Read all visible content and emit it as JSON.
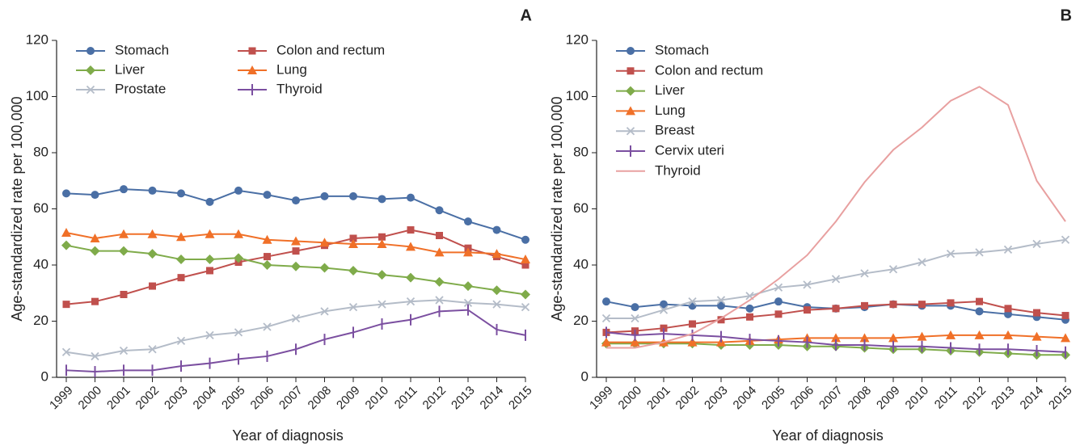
{
  "chart_data": [
    {
      "type": "line",
      "panel": "A",
      "y_label": "Age-standardized rate per 100,000",
      "x_label": "Year of diagnosis",
      "categories": [
        "1999",
        "2000",
        "2001",
        "2002",
        "2003",
        "2004",
        "2005",
        "2006",
        "2007",
        "2008",
        "2009",
        "2010",
        "2011",
        "2012",
        "2013",
        "2014",
        "2015"
      ],
      "ylim": [
        0,
        120
      ],
      "yticks": [
        0,
        20,
        40,
        60,
        80,
        100,
        120
      ],
      "legend_columns": 2,
      "series": [
        {
          "name": "Stomach",
          "color": "#4a6fa5",
          "marker": "circle",
          "values": [
            65.5,
            65,
            67,
            66.5,
            65.5,
            62.5,
            66.5,
            65,
            63,
            64.5,
            64.5,
            63.5,
            64,
            59.5,
            55.5,
            52.5,
            49
          ]
        },
        {
          "name": "Colon and rectum",
          "color": "#c0504d",
          "marker": "square",
          "values": [
            26,
            27,
            29.5,
            32.5,
            35.5,
            38,
            41,
            43,
            45,
            47,
            49.5,
            50,
            52.5,
            50.5,
            46,
            43,
            40
          ]
        },
        {
          "name": "Liver",
          "color": "#7fab4a",
          "marker": "diamond",
          "values": [
            47,
            45,
            45,
            44,
            42,
            42,
            42.5,
            40,
            39.5,
            39,
            38,
            36.5,
            35.5,
            34,
            32.5,
            31,
            29.5
          ]
        },
        {
          "name": "Lung",
          "color": "#f07028",
          "marker": "triangle",
          "values": [
            51.5,
            49.5,
            51,
            51,
            50,
            51,
            51,
            49,
            48.5,
            48,
            47.5,
            47.5,
            46.5,
            44.5,
            44.5,
            44,
            42
          ]
        },
        {
          "name": "Prostate",
          "color": "#b4bcc8",
          "marker": "x",
          "values": [
            9,
            7.5,
            9.5,
            10,
            13,
            15,
            16,
            18,
            21,
            23.5,
            25,
            26,
            27,
            27.5,
            26.5,
            26,
            25
          ]
        },
        {
          "name": "Thyroid",
          "color": "#7b4fa0",
          "marker": "plus",
          "values": [
            2.5,
            2,
            2.5,
            2.5,
            4,
            5,
            6.5,
            7.5,
            10,
            13.5,
            16,
            19,
            20.5,
            23.5,
            24,
            17,
            15
          ]
        }
      ]
    },
    {
      "type": "line",
      "panel": "B",
      "y_label": "Age-standardized rate per 100,000",
      "x_label": "Year of diagnosis",
      "categories": [
        "1999",
        "2000",
        "2001",
        "2002",
        "2003",
        "2004",
        "2005",
        "2006",
        "2007",
        "2008",
        "2009",
        "2010",
        "2011",
        "2012",
        "2013",
        "2014",
        "2015"
      ],
      "ylim": [
        0,
        120
      ],
      "yticks": [
        0,
        20,
        40,
        60,
        80,
        100,
        120
      ],
      "legend_columns": 1,
      "series": [
        {
          "name": "Stomach",
          "color": "#4a6fa5",
          "marker": "circle",
          "values": [
            27,
            25,
            26,
            25.5,
            25.5,
            24.5,
            27,
            25,
            24.5,
            25,
            26,
            25.5,
            25.5,
            23.5,
            22.5,
            21.5,
            20.5
          ]
        },
        {
          "name": "Colon and rectum",
          "color": "#c0504d",
          "marker": "square",
          "values": [
            16,
            16.5,
            17.5,
            19,
            20.5,
            21.5,
            22.5,
            24,
            24.5,
            25.5,
            26,
            26,
            26.5,
            27,
            24.5,
            23,
            22
          ]
        },
        {
          "name": "Liver",
          "color": "#7fab4a",
          "marker": "diamond",
          "values": [
            12,
            12,
            12,
            12,
            11.5,
            11.5,
            11.5,
            11,
            11,
            10.5,
            10,
            10,
            9.5,
            9,
            8.5,
            8,
            8
          ]
        },
        {
          "name": "Lung",
          "color": "#f07028",
          "marker": "triangle",
          "values": [
            12.5,
            12.5,
            12.5,
            12.5,
            12.5,
            13,
            13.5,
            14,
            14,
            14,
            14,
            14.5,
            15,
            15,
            15,
            14.5,
            14
          ]
        },
        {
          "name": "Breast",
          "color": "#b4bcc8",
          "marker": "x",
          "values": [
            21,
            21,
            24,
            27,
            27.5,
            29,
            32,
            33,
            35,
            37,
            38.5,
            41,
            44,
            44.5,
            45.5,
            47.5,
            49
          ]
        },
        {
          "name": "Cervix uteri",
          "color": "#7b4fa0",
          "marker": "plus",
          "values": [
            16,
            15,
            15.5,
            15,
            14.5,
            13.5,
            13,
            12.5,
            11.5,
            11.5,
            11,
            11,
            10.5,
            10,
            10,
            9.5,
            9
          ]
        },
        {
          "name": "Thyroid",
          "color": "#e8a0a0",
          "marker": "none",
          "values": [
            10.5,
            10.5,
            12.5,
            15.5,
            21,
            27.5,
            35,
            43.5,
            55.5,
            69.5,
            81,
            89,
            98.5,
            103.5,
            97,
            70,
            55.5
          ]
        }
      ]
    }
  ]
}
